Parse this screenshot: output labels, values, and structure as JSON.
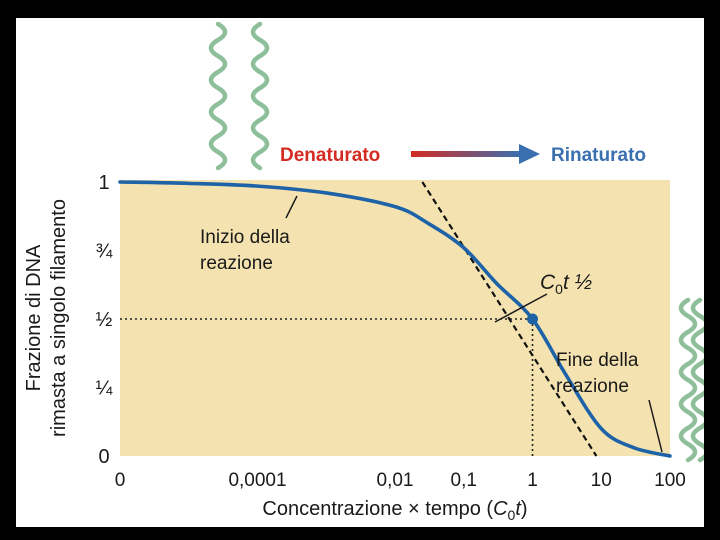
{
  "chart_data": {
    "type": "line",
    "xscale": "log",
    "x_ticks": [
      "0",
      "0,0001",
      "0,01",
      "0,1",
      "1",
      "10",
      "100"
    ],
    "y_ticks": [
      "0",
      "¼",
      "½",
      "¾",
      "1"
    ],
    "xlim": [
      1e-06,
      100
    ],
    "ylim": [
      0,
      1
    ],
    "xlabel_text": "Concentrazione × tempo (",
    "xlabel_var": "C",
    "xlabel_sub": "0",
    "xlabel_var2": "t",
    "xlabel_end": ")",
    "ylabel_line1": "Frazione di DNA",
    "ylabel_line2": "rimasta a singolo filamento",
    "series": [
      {
        "x": [
          1e-06,
          1e-05,
          0.0001,
          0.001,
          0.01,
          0.03,
          0.1,
          0.3,
          1,
          3,
          10,
          30,
          100
        ],
        "y": [
          1.0,
          0.995,
          0.985,
          0.96,
          0.91,
          0.85,
          0.76,
          0.63,
          0.5,
          0.3,
          0.1,
          0.03,
          0.0
        ]
      }
    ],
    "midpoint": {
      "x": 1,
      "y": 0.5
    },
    "tangent": {
      "x": [
        0.025,
        8.5
      ],
      "y": [
        1.0,
        0.0
      ]
    },
    "midpoint_label_var": "C",
    "midpoint_label_sub": "0",
    "midpoint_label_rest": "t ½",
    "annotations": {
      "start_line1": "Inizio della",
      "start_line2": "reazione",
      "end_line1": "Fine della",
      "end_line2": "reazione"
    },
    "legend": {
      "denatured": "Denaturato",
      "renatured": "Rinaturato"
    },
    "colors": {
      "plot_bg": "#f4e3b0",
      "curve": "#1e62a8",
      "denatured": "#d42b22",
      "renatured": "#3a6fb0",
      "dna": "#8fbf9a"
    }
  }
}
